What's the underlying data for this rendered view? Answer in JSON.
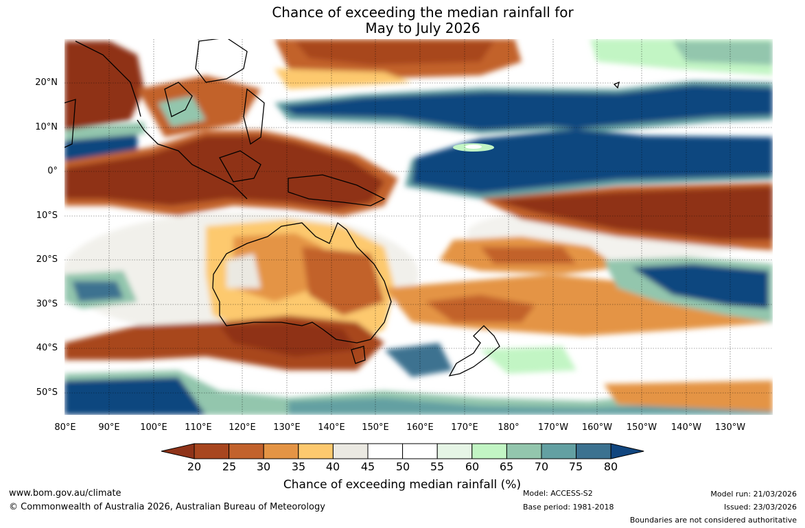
{
  "title": {
    "line1": "Chance of exceeding the median rainfall for",
    "line2": "May to July 2026"
  },
  "latitude_labels": [
    "20°N",
    "10°N",
    "0°",
    "10°S",
    "20°S",
    "30°S",
    "40°S",
    "50°S"
  ],
  "longitude_labels": [
    "80°E",
    "90°E",
    "100°E",
    "110°E",
    "120°E",
    "130°E",
    "140°E",
    "150°E",
    "160°E",
    "170°E",
    "180°",
    "170°W",
    "160°W",
    "150°W",
    "140°W",
    "130°W"
  ],
  "colorbar": {
    "title": "Chance of exceeding median rainfall (%)",
    "tick_labels": [
      "20",
      "25",
      "30",
      "35",
      "40",
      "45",
      "50",
      "55",
      "60",
      "65",
      "70",
      "75",
      "80"
    ],
    "colors": [
      "#8f3319",
      "#a8461f",
      "#c2622c",
      "#e49445",
      "#fdc96e",
      "#ebe9e2",
      "#ffffff",
      "#ffffff",
      "#e6f5e6",
      "#c2f5c4",
      "#93c6ad",
      "#63a0a2",
      "#3c7290",
      "#11467f"
    ]
  },
  "footer": {
    "website": "www.bom.gov.au/climate",
    "copyright": "© Commonwealth of Australia 2026, Australian Bureau of Meteorology",
    "model": "Model: ACCESS-S2",
    "base_period": "Base period: 1981-2018",
    "model_run": "Model run: 21/03/2026",
    "issued": "Issued: 23/03/2026",
    "disclaimer": "Boundaries are not considered authoritative"
  }
}
